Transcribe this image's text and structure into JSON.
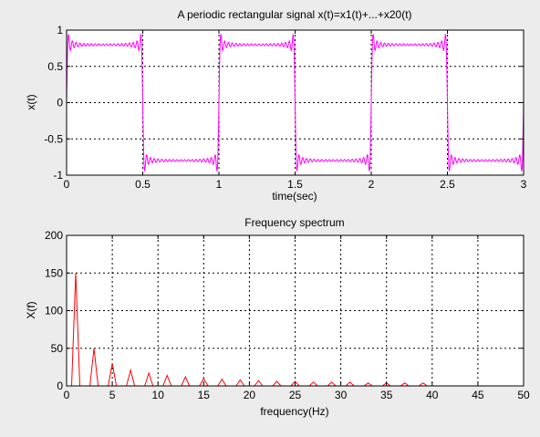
{
  "figure": {
    "background": "#ececec",
    "axes_background": "#ffffff"
  },
  "chart_data": [
    {
      "type": "line",
      "title": "A periodic rectangular signal x(t)=x1(t)+...+x20(t)",
      "xlabel": "time(sec)",
      "ylabel": "x(t)",
      "xlim": [
        0,
        3
      ],
      "ylim": [
        -1,
        1
      ],
      "xticks": [
        0,
        0.5,
        1,
        1.5,
        2,
        2.5,
        3
      ],
      "yticks": [
        -1,
        -0.5,
        0,
        0.5,
        1
      ],
      "grid": true,
      "grid_style": "dotted",
      "legend": "none",
      "series": [
        {
          "color": "#ff00ff",
          "signal": "square",
          "amplitude": 0.785,
          "period": 1,
          "harmonics": 20,
          "ripple_amplitude": 0.012
        }
      ]
    },
    {
      "type": "line",
      "title": "Frequency spectrum",
      "xlabel": "frequency(Hz)",
      "ylabel": "X(f)",
      "xlim": [
        0,
        50
      ],
      "ylim": [
        0,
        200
      ],
      "xticks": [
        0,
        5,
        10,
        15,
        20,
        25,
        30,
        35,
        40,
        45,
        50
      ],
      "yticks": [
        0,
        50,
        100,
        150,
        200
      ],
      "grid": true,
      "grid_style": "dotted",
      "legend": "none",
      "series": [
        {
          "color": "#ff0000",
          "peak_width": 0.45,
          "peaks": [
            {
              "x": 1,
              "y": 150
            },
            {
              "x": 3,
              "y": 50
            },
            {
              "x": 5,
              "y": 30
            },
            {
              "x": 7,
              "y": 21
            },
            {
              "x": 9,
              "y": 17
            },
            {
              "x": 11,
              "y": 14
            },
            {
              "x": 13,
              "y": 12
            },
            {
              "x": 15,
              "y": 10
            },
            {
              "x": 17,
              "y": 9
            },
            {
              "x": 19,
              "y": 8
            },
            {
              "x": 21,
              "y": 7
            },
            {
              "x": 23,
              "y": 6
            },
            {
              "x": 25,
              "y": 6
            },
            {
              "x": 27,
              "y": 5
            },
            {
              "x": 29,
              "y": 5
            },
            {
              "x": 31,
              "y": 5
            },
            {
              "x": 33,
              "y": 4
            },
            {
              "x": 35,
              "y": 4
            },
            {
              "x": 37,
              "y": 4
            },
            {
              "x": 39,
              "y": 4
            }
          ]
        }
      ]
    }
  ]
}
